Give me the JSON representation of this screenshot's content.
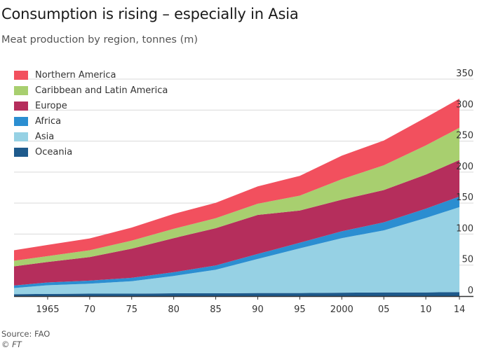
{
  "title": "Consumption is rising – especially in Asia",
  "subtitle": "Meat production by region, tonnes (m)",
  "source": "Source: FAO",
  "copyright": "© FT",
  "legend": [
    {
      "name": "Northern America",
      "color": "#f2505e"
    },
    {
      "name": "Caribbean and Latin America",
      "color": "#a8cf6f"
    },
    {
      "name": "Europe",
      "color": "#b52e5c"
    },
    {
      "name": "Africa",
      "color": "#2b8ed1"
    },
    {
      "name": "Asia",
      "color": "#96d1e4"
    },
    {
      "name": "Oceania",
      "color": "#1e5a8c"
    }
  ],
  "chart_data": {
    "type": "area",
    "stacked": true,
    "title": "Consumption is rising – especially in Asia",
    "subtitle": "Meat production by region, tonnes (m)",
    "x": [
      1961,
      1965,
      1970,
      1975,
      1980,
      1985,
      1990,
      1995,
      2000,
      2005,
      2010,
      2014
    ],
    "x_ticks": [
      1965,
      1970,
      1975,
      1980,
      1985,
      1990,
      1995,
      2000,
      2005,
      2010,
      2014
    ],
    "x_tick_labels": [
      "1965",
      "70",
      "75",
      "80",
      "85",
      "90",
      "95",
      "2000",
      "05",
      "10",
      "14"
    ],
    "y_ticks": [
      0,
      50,
      100,
      150,
      200,
      250,
      300,
      350
    ],
    "ylim": [
      0,
      350
    ],
    "y_axis_side": "right",
    "grid": "horizontal",
    "legend_position": "top-left",
    "series": [
      {
        "name": "Oceania",
        "color": "#1e5a8c",
        "values": [
          3,
          3.5,
          4,
          4,
          4.5,
          4.5,
          5,
          5,
          5.5,
          6,
          6,
          6.5
        ]
      },
      {
        "name": "Asia",
        "color": "#96d1e4",
        "values": [
          10,
          14,
          16,
          20,
          28,
          38,
          55,
          72,
          88,
          100,
          120,
          137
        ]
      },
      {
        "name": "Africa",
        "color": "#2b8ed1",
        "values": [
          4,
          4.5,
          5,
          5.5,
          6,
          7,
          8,
          9,
          11,
          13,
          15,
          17
        ]
      },
      {
        "name": "Europe",
        "color": "#b52e5c",
        "values": [
          31,
          33,
          38,
          47,
          55,
          60,
          63,
          52,
          51,
          52,
          55,
          59
        ]
      },
      {
        "name": "Caribbean and Latin America",
        "color": "#a8cf6f",
        "values": [
          9,
          9.5,
          11,
          13,
          15,
          16,
          18,
          24,
          33,
          40,
          47,
          52
        ]
      },
      {
        "name": "Northern America",
        "color": "#f2505e",
        "values": [
          17,
          18,
          19,
          21,
          24,
          25,
          28,
          32,
          38,
          40,
          45,
          47
        ]
      }
    ]
  }
}
